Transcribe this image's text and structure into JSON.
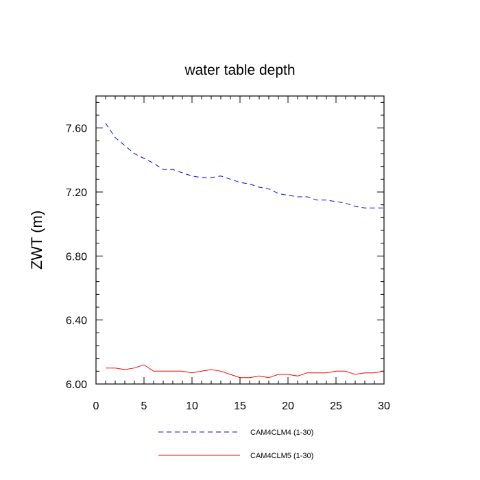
{
  "chart_data": {
    "type": "line",
    "title": "water table depth",
    "xlabel": "",
    "ylabel": "ZWT  (m)",
    "xlim": [
      0,
      30
    ],
    "ylim": [
      6.0,
      7.8
    ],
    "x_ticks": [
      0,
      5,
      10,
      15,
      20,
      25,
      30
    ],
    "x_tick_labels": [
      "0",
      "5",
      "10",
      "15",
      "20",
      "25",
      "30"
    ],
    "y_ticks": [
      6.0,
      6.4,
      6.8,
      7.2,
      7.6
    ],
    "y_tick_labels": [
      "6.00",
      "6.40",
      "6.80",
      "7.20",
      "7.60"
    ],
    "grid": false,
    "legend_position": "bottom",
    "x": [
      1,
      2,
      3,
      4,
      5,
      6,
      7,
      8,
      9,
      10,
      11,
      12,
      13,
      14,
      15,
      16,
      17,
      18,
      19,
      20,
      21,
      22,
      23,
      24,
      25,
      26,
      27,
      28,
      29,
      30
    ],
    "series": [
      {
        "name": "CAM4CLM4 (1-30)",
        "color": "#0000ff",
        "dash": "dashed",
        "values": [
          7.63,
          7.54,
          7.49,
          7.44,
          7.41,
          7.38,
          7.34,
          7.34,
          7.32,
          7.3,
          7.29,
          7.29,
          7.3,
          7.28,
          7.26,
          7.25,
          7.23,
          7.22,
          7.19,
          7.18,
          7.17,
          7.17,
          7.15,
          7.15,
          7.14,
          7.13,
          7.11,
          7.1,
          7.1,
          7.1
        ]
      },
      {
        "name": "CAM4CLM5 (1-30)",
        "color": "#ff0000",
        "dash": "solid",
        "values": [
          6.1,
          6.1,
          6.09,
          6.1,
          6.12,
          6.08,
          6.08,
          6.08,
          6.08,
          6.07,
          6.08,
          6.09,
          6.08,
          6.06,
          6.04,
          6.04,
          6.05,
          6.04,
          6.06,
          6.06,
          6.05,
          6.07,
          6.07,
          6.07,
          6.08,
          6.08,
          6.06,
          6.07,
          6.07,
          6.08
        ]
      }
    ]
  }
}
